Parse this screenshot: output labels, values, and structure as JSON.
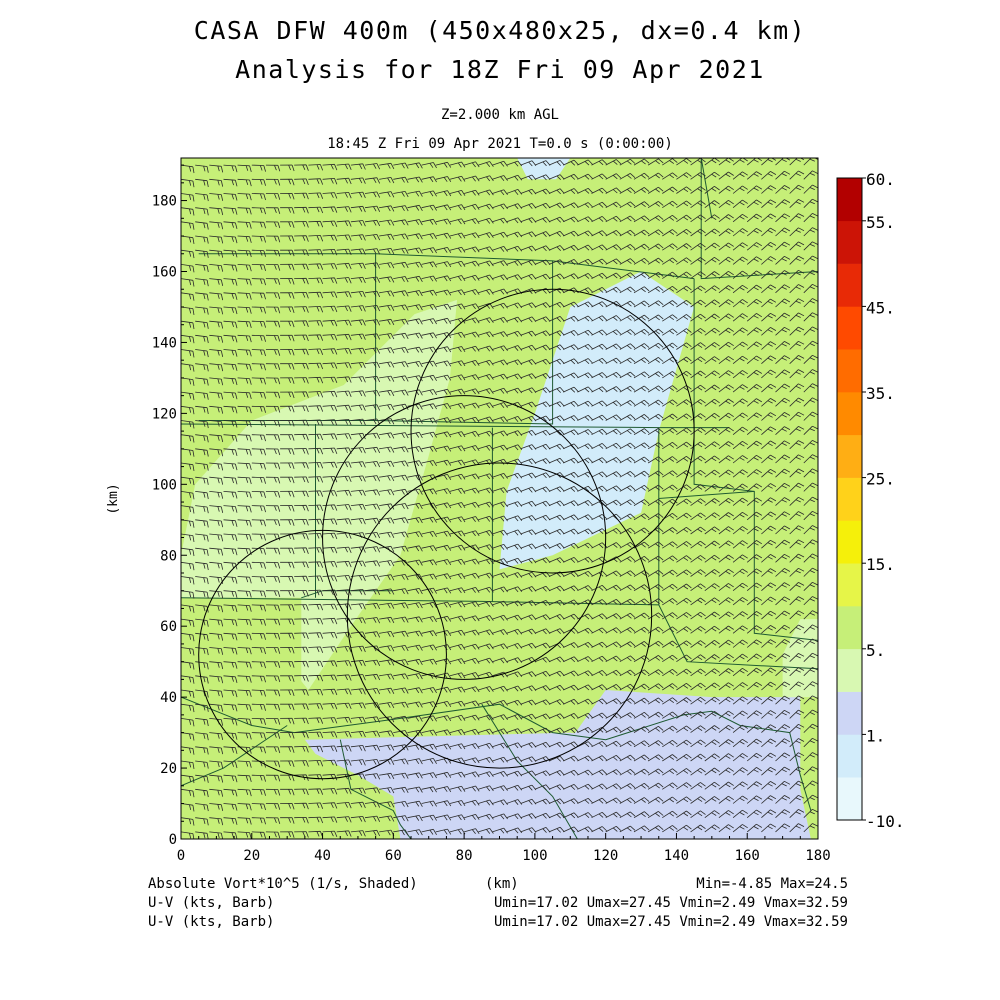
{
  "header": {
    "title_line1": "CASA DFW 400m (450x480x25, dx=0.4 km)",
    "title_line2": "Analysis for 18Z Fri 09 Apr 2021",
    "level": "Z=2.000 km AGL",
    "valid_time": "18:45 Z Fri 09 Apr 2021    T=0.0 s (0:00:00)"
  },
  "map": {
    "x_unit": "(km)",
    "y_unit": "(km)",
    "x_ticks": [
      "0",
      "20",
      "40",
      "60",
      "80",
      "100",
      "120",
      "140",
      "160",
      "180"
    ],
    "y_ticks": [
      "0",
      "20",
      "40",
      "60",
      "80",
      "100",
      "120",
      "140",
      "160",
      "180"
    ],
    "x_range": [
      0,
      180
    ],
    "y_range": [
      0,
      192
    ],
    "radar_circles_km": [
      {
        "cx": 40,
        "cy": 52,
        "r": 35
      },
      {
        "cx": 80,
        "cy": 85,
        "r": 40
      },
      {
        "cx": 105,
        "cy": 115,
        "r": 40
      },
      {
        "cx": 90,
        "cy": 63,
        "r": 43
      }
    ],
    "field_regions": [
      {
        "cls": 3,
        "pts": [
          [
            0,
            60
          ],
          [
            20,
            62
          ],
          [
            36,
            42
          ],
          [
            48,
            60
          ],
          [
            62,
            80
          ],
          [
            70,
            108
          ],
          [
            76,
            130
          ],
          [
            78,
            152
          ],
          [
            66,
            148
          ],
          [
            46,
            128
          ],
          [
            20,
            118
          ],
          [
            4,
            100
          ],
          [
            0,
            80
          ]
        ]
      },
      {
        "cls": 4,
        "pts": [
          [
            0,
            68
          ],
          [
            34,
            68
          ],
          [
            34,
            42
          ],
          [
            0,
            42
          ]
        ]
      },
      {
        "cls": 2,
        "pts": [
          [
            35,
            28
          ],
          [
            110,
            30
          ],
          [
            135,
            26
          ],
          [
            170,
            36
          ],
          [
            175,
            14
          ],
          [
            178,
            0
          ],
          [
            62,
            0
          ],
          [
            60,
            12
          ],
          [
            50,
            18
          ],
          [
            38,
            24
          ]
        ]
      },
      {
        "cls": 2,
        "pts": [
          [
            110,
            28
          ],
          [
            120,
            42
          ],
          [
            150,
            40
          ],
          [
            175,
            40
          ],
          [
            175,
            14
          ],
          [
            162,
            20
          ],
          [
            135,
            26
          ]
        ]
      },
      {
        "cls": 1,
        "pts": [
          [
            105,
            80
          ],
          [
            130,
            92
          ],
          [
            135,
            115
          ],
          [
            145,
            150
          ],
          [
            130,
            160
          ],
          [
            110,
            150
          ],
          [
            100,
            120
          ],
          [
            92,
            98
          ],
          [
            90,
            76
          ]
        ]
      },
      {
        "cls": 1,
        "pts": [
          [
            95,
            192
          ],
          [
            110,
            192
          ],
          [
            106,
            186
          ],
          [
            98,
            186
          ]
        ]
      },
      {
        "cls": 3,
        "pts": [
          [
            170,
            40
          ],
          [
            180,
            40
          ],
          [
            180,
            62
          ],
          [
            175,
            62
          ],
          [
            170,
            52
          ]
        ]
      }
    ],
    "county_lines": [
      [
        [
          5,
          165
        ],
        [
          55,
          165
        ],
        [
          55,
          118
        ],
        [
          5,
          118
        ]
      ],
      [
        [
          55,
          165
        ],
        [
          105,
          163
        ],
        [
          105,
          117
        ],
        [
          55,
          118
        ]
      ],
      [
        [
          0,
          117
        ],
        [
          135,
          116
        ],
        [
          155,
          116
        ]
      ],
      [
        [
          38,
          117
        ],
        [
          38,
          68
        ]
      ],
      [
        [
          0,
          68
        ],
        [
          85,
          67
        ],
        [
          135,
          66
        ]
      ],
      [
        [
          88,
          116
        ],
        [
          88,
          67
        ]
      ],
      [
        [
          135,
          116
        ],
        [
          135,
          96
        ],
        [
          162,
          98
        ]
      ],
      [
        [
          135,
          96
        ],
        [
          135,
          66
        ]
      ],
      [
        [
          105,
          163
        ],
        [
          145,
          158
        ]
      ],
      [
        [
          147,
          192
        ],
        [
          147,
          158
        ],
        [
          180,
          160
        ]
      ],
      [
        [
          145,
          158
        ],
        [
          145,
          100
        ],
        [
          162,
          98
        ],
        [
          162,
          58
        ],
        [
          180,
          56
        ]
      ],
      [
        [
          135,
          66
        ],
        [
          143,
          50
        ],
        [
          180,
          48
        ]
      ],
      [
        [
          147,
          192
        ],
        [
          150,
          175
        ]
      ],
      [
        [
          0,
          40
        ],
        [
          10,
          36
        ],
        [
          20,
          32
        ],
        [
          32,
          30
        ]
      ],
      [
        [
          0,
          15
        ],
        [
          12,
          20
        ],
        [
          30,
          32
        ]
      ],
      [
        [
          32,
          30
        ],
        [
          62,
          34
        ],
        [
          90,
          38
        ],
        [
          105,
          30
        ],
        [
          120,
          28
        ],
        [
          142,
          35
        ],
        [
          150,
          36
        ],
        [
          158,
          32
        ],
        [
          172,
          30
        ],
        [
          175,
          18
        ],
        [
          178,
          8
        ]
      ],
      [
        [
          45,
          28
        ],
        [
          48,
          14
        ],
        [
          60,
          8
        ],
        [
          62,
          4
        ],
        [
          65,
          0
        ]
      ],
      [
        [
          85,
          38
        ],
        [
          95,
          22
        ],
        [
          105,
          12
        ],
        [
          112,
          0
        ]
      ],
      [
        [
          60,
          70
        ],
        [
          40,
          70
        ],
        [
          34,
          68
        ]
      ]
    ],
    "barb_grid": {
      "dx_km": 4,
      "dy_km": 4
    }
  },
  "colorbar": {
    "labels": [
      {
        "i": 0,
        "text": "-10."
      },
      {
        "i": 2,
        "text": "1."
      },
      {
        "i": 4,
        "text": "5."
      },
      {
        "i": 6,
        "text": "15."
      },
      {
        "i": 8,
        "text": "25."
      },
      {
        "i": 10,
        "text": "35."
      },
      {
        "i": 12,
        "text": "45."
      },
      {
        "i": 14,
        "text": "55."
      },
      {
        "i": 15,
        "text": "60."
      }
    ],
    "colors": [
      "#e8f8fc",
      "#d2ecfa",
      "#cdd6f5",
      "#d8f8b2",
      "#c6ef78",
      "#e6f548",
      "#f5f00a",
      "#ffd21a",
      "#ffae14",
      "#ff8a00",
      "#ff6c00",
      "#ff4a00",
      "#e82a06",
      "#cc1406",
      "#b20000"
    ]
  },
  "footer": {
    "left1": "Absolute Vort*10^5 (1/s, Shaded)",
    "unit": "(km)",
    "range": "Min=-4.85 Max=24.5",
    "left2": "U-V (kts, Barb)",
    "stats2": "Umin=17.02 Umax=27.45 Vmin=2.49 Vmax=32.59",
    "left3": "U-V (kts, Barb)",
    "stats3": "Umin=17.02 Umax=27.45 Vmin=2.49 Vmax=32.59"
  }
}
